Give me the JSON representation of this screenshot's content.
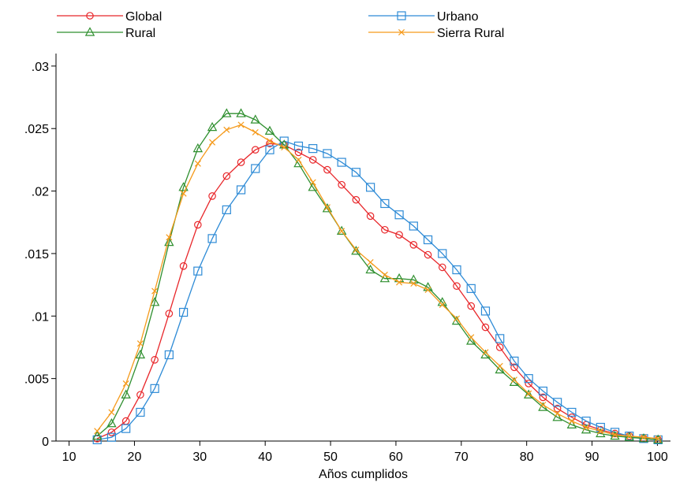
{
  "chart_data": {
    "type": "line",
    "title": "",
    "xlabel": "Años cumplidos",
    "ylabel": "",
    "xlim": [
      8,
      102
    ],
    "ylim": [
      0,
      0.031
    ],
    "xticks": [
      10,
      20,
      30,
      40,
      50,
      60,
      70,
      80,
      90,
      100
    ],
    "xtick_labels": [
      "10",
      "20",
      "30",
      "40",
      "50",
      "60",
      "70",
      "80",
      "90",
      "100"
    ],
    "yticks": [
      0,
      0.005,
      0.01,
      0.015,
      0.02,
      0.025,
      0.03
    ],
    "ytick_labels": [
      "0",
      ".005",
      ".01",
      ".015",
      ".02",
      ".025",
      ".03"
    ],
    "grid": false,
    "legend_position": "top",
    "x": [
      14.3,
      16.5,
      18.7,
      20.9,
      23.1,
      25.3,
      27.5,
      29.7,
      31.9,
      34.1,
      36.3,
      38.5,
      40.7,
      42.9,
      45.1,
      47.3,
      49.5,
      51.7,
      53.9,
      56.1,
      58.3,
      60.5,
      62.7,
      64.9,
      67.1,
      69.3,
      71.5,
      73.7,
      75.9,
      78.1,
      80.3,
      82.5,
      84.7,
      86.9,
      89.1,
      91.3,
      93.5,
      95.7,
      97.9,
      100.1
    ],
    "series": [
      {
        "name": "Global",
        "color": "#e8262a",
        "marker": "circle",
        "values": [
          0.0002,
          0.0007,
          0.0016,
          0.0037,
          0.0065,
          0.0102,
          0.014,
          0.0173,
          0.0196,
          0.0212,
          0.0223,
          0.0233,
          0.0238,
          0.0237,
          0.0231,
          0.0225,
          0.0217,
          0.0205,
          0.0193,
          0.018,
          0.0169,
          0.0165,
          0.0157,
          0.0149,
          0.0139,
          0.0124,
          0.0108,
          0.0091,
          0.0075,
          0.0059,
          0.0046,
          0.0035,
          0.0026,
          0.0019,
          0.0013,
          0.0009,
          0.0006,
          0.0004,
          0.0002,
          0.0001
        ]
      },
      {
        "name": "Urbano",
        "color": "#2e8bd6",
        "marker": "square",
        "values": [
          0.0001,
          0.0003,
          0.001,
          0.0023,
          0.0042,
          0.0069,
          0.0103,
          0.0136,
          0.0162,
          0.0185,
          0.0201,
          0.0218,
          0.0233,
          0.024,
          0.0236,
          0.0234,
          0.023,
          0.0223,
          0.0215,
          0.0203,
          0.019,
          0.0181,
          0.0172,
          0.0161,
          0.015,
          0.0137,
          0.0122,
          0.0104,
          0.0082,
          0.0064,
          0.005,
          0.004,
          0.0031,
          0.0023,
          0.0016,
          0.0011,
          0.0007,
          0.0004,
          0.0002,
          0.0001
        ]
      },
      {
        "name": "Rural",
        "color": "#2f8f2f",
        "marker": "triangle",
        "values": [
          0.0004,
          0.0014,
          0.0037,
          0.0069,
          0.0111,
          0.0159,
          0.0203,
          0.0234,
          0.0251,
          0.0262,
          0.0262,
          0.0257,
          0.0248,
          0.0237,
          0.0222,
          0.0203,
          0.0186,
          0.0168,
          0.0152,
          0.0137,
          0.013,
          0.013,
          0.0129,
          0.0123,
          0.0111,
          0.0096,
          0.008,
          0.0069,
          0.0057,
          0.0047,
          0.0037,
          0.0027,
          0.0019,
          0.0013,
          0.0009,
          0.0006,
          0.0004,
          0.0003,
          0.0002,
          0.0001
        ]
      },
      {
        "name": "Sierra Rural",
        "color": "#f59a1b",
        "marker": "cross",
        "values": [
          0.0008,
          0.0023,
          0.0046,
          0.0078,
          0.012,
          0.0163,
          0.0198,
          0.0222,
          0.0239,
          0.0249,
          0.0253,
          0.0247,
          0.024,
          0.0235,
          0.0225,
          0.0207,
          0.0187,
          0.0168,
          0.0153,
          0.0143,
          0.0133,
          0.0127,
          0.0126,
          0.0121,
          0.0109,
          0.0098,
          0.0083,
          0.0071,
          0.006,
          0.0049,
          0.0038,
          0.0029,
          0.0022,
          0.0016,
          0.0011,
          0.0008,
          0.0005,
          0.0004,
          0.0003,
          0.0002
        ]
      }
    ]
  }
}
